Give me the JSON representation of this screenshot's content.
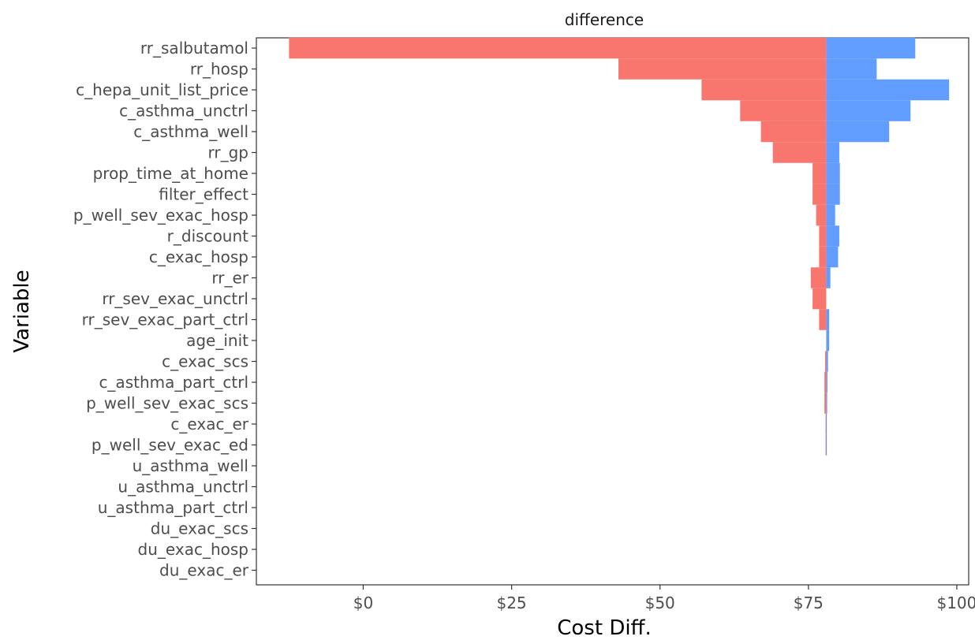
{
  "chart_data": {
    "type": "bar",
    "orientation": "horizontal",
    "title": "difference",
    "xlabel": "Cost Diff.",
    "ylabel": "Variable",
    "baseline": 78,
    "xlim": [
      -18,
      102
    ],
    "xticks": [
      0,
      25,
      50,
      75,
      100
    ],
    "xtick_labels": [
      "$0",
      "$25",
      "$50",
      "$75",
      "$100"
    ],
    "grid": false,
    "legend": "none",
    "categories": [
      "rr_salbutamol",
      "rr_hosp",
      "c_hepa_unit_list_price",
      "c_asthma_unctrl",
      "c_asthma_well",
      "rr_gp",
      "prop_time_at_home",
      "filter_effect",
      "p_well_sev_exac_hosp",
      "r_discount",
      "c_exac_hosp",
      "rr_er",
      "rr_sev_exac_unctrl",
      "rr_sev_exac_part_ctrl",
      "age_init",
      "c_exac_scs",
      "c_asthma_part_ctrl",
      "p_well_sev_exac_scs",
      "c_exac_er",
      "p_well_sev_exac_ed",
      "u_asthma_well",
      "u_asthma_unctrl",
      "u_asthma_part_ctrl",
      "du_exac_scs",
      "du_exac_hosp",
      "du_exac_er"
    ],
    "series": [
      {
        "color": "#F8766D",
        "values": [
          -12.5,
          43,
          57,
          63.5,
          67,
          69,
          75.7,
          75.7,
          76.3,
          76.8,
          76.8,
          75.4,
          75.7,
          76.8,
          78,
          77.8,
          77.7,
          77.7,
          78,
          78,
          78,
          78,
          78,
          78,
          78,
          78
        ]
      },
      {
        "color": "#619CFF",
        "values": [
          93,
          86.5,
          98.7,
          92.2,
          88.6,
          80.2,
          80.3,
          80.3,
          79.5,
          80.2,
          80,
          78.7,
          78,
          78.5,
          78.5,
          78.3,
          78.2,
          78.1,
          78,
          78,
          78,
          78,
          78,
          78,
          78,
          78
        ]
      }
    ]
  }
}
